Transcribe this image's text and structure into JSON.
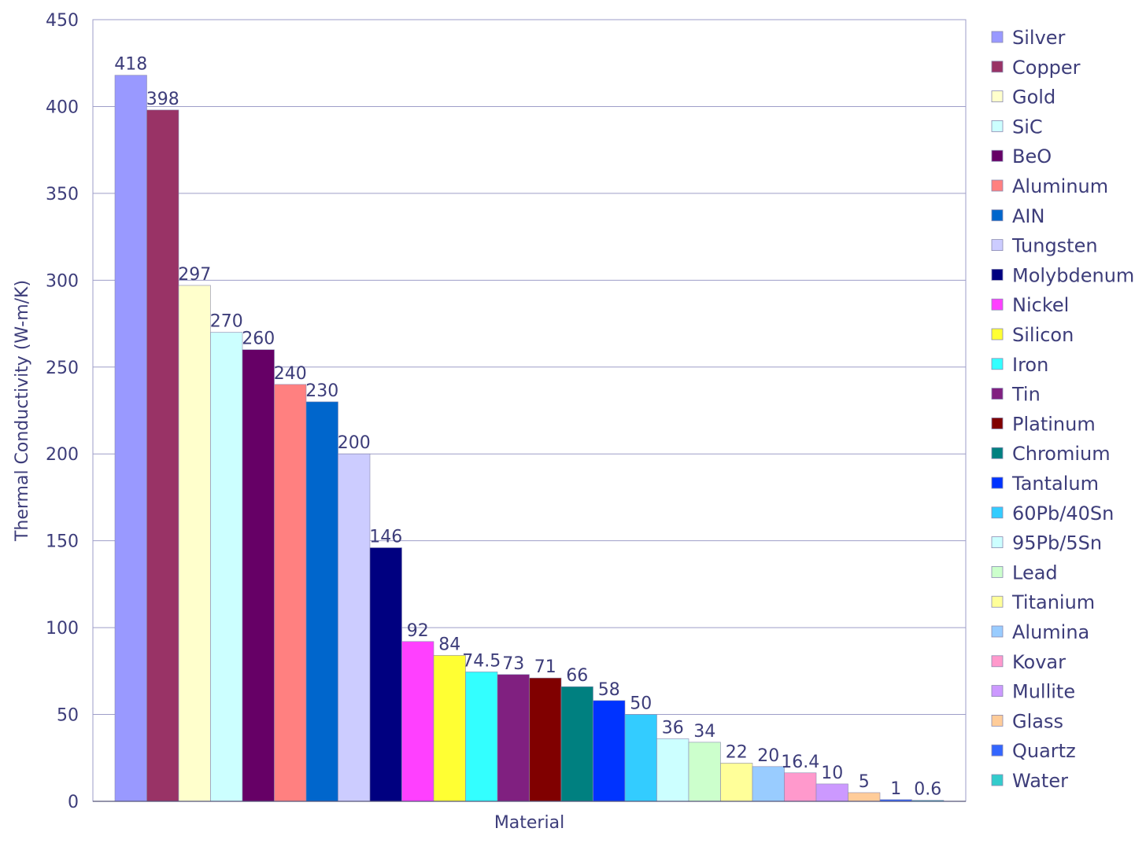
{
  "chart_data": {
    "type": "bar",
    "title": "",
    "xlabel": "Material",
    "ylabel": "Thermal Conductivity (W-m/K)",
    "ylim": [
      0,
      450
    ],
    "yticks": [
      0,
      50,
      100,
      150,
      200,
      250,
      300,
      350,
      400,
      450
    ],
    "grid": true,
    "legend_position": "right",
    "series": [
      {
        "name": "Silver",
        "value": 418,
        "label": "418",
        "color": "#9999ff"
      },
      {
        "name": "Copper",
        "value": 398,
        "label": "398",
        "color": "#993366"
      },
      {
        "name": "Gold",
        "value": 297,
        "label": "297",
        "color": "#ffffcc"
      },
      {
        "name": "SiC",
        "value": 270,
        "label": "270",
        "color": "#ccffff"
      },
      {
        "name": "BeO",
        "value": 260,
        "label": "260",
        "color": "#660066"
      },
      {
        "name": "Aluminum",
        "value": 240,
        "label": "240",
        "color": "#ff8080"
      },
      {
        "name": "AIN",
        "value": 230,
        "label": "230",
        "color": "#0066cc"
      },
      {
        "name": "Tungsten",
        "value": 200,
        "label": "200",
        "color": "#ccccff"
      },
      {
        "name": "Molybdenum",
        "value": 146,
        "label": "146",
        "color": "#000080"
      },
      {
        "name": "Nickel",
        "value": 92,
        "label": "92",
        "color": "#ff40ff"
      },
      {
        "name": "Silicon",
        "value": 84,
        "label": "84",
        "color": "#ffff33"
      },
      {
        "name": "Iron",
        "value": 74.5,
        "label": "74.5",
        "color": "#33ffff"
      },
      {
        "name": "Tin",
        "value": 73,
        "label": "73",
        "color": "#802080"
      },
      {
        "name": "Platinum",
        "value": 71,
        "label": "71",
        "color": "#800000"
      },
      {
        "name": "Chromium",
        "value": 66,
        "label": "66",
        "color": "#008080"
      },
      {
        "name": "Tantalum",
        "value": 58,
        "label": "58",
        "color": "#0033ff"
      },
      {
        "name": "60Pb/40Sn",
        "value": 50,
        "label": "50",
        "color": "#33ccff"
      },
      {
        "name": "95Pb/5Sn",
        "value": 36,
        "label": "36",
        "color": "#ccffff"
      },
      {
        "name": "Lead",
        "value": 34,
        "label": "34",
        "color": "#ccffcc"
      },
      {
        "name": "Titanium",
        "value": 22,
        "label": "22",
        "color": "#ffff99"
      },
      {
        "name": "Alumina",
        "value": 20,
        "label": "20",
        "color": "#99ccff"
      },
      {
        "name": "Kovar",
        "value": 16.4,
        "label": "16.4",
        "color": "#ff99cc"
      },
      {
        "name": "Mullite",
        "value": 10,
        "label": "10",
        "color": "#cc99ff"
      },
      {
        "name": "Glass",
        "value": 5,
        "label": "5",
        "color": "#ffcc99"
      },
      {
        "name": "Quartz",
        "value": 1,
        "label": "1",
        "color": "#3366ff"
      },
      {
        "name": "Water",
        "value": 0.6,
        "label": "0.6",
        "color": "#33cccc"
      }
    ]
  },
  "colors": {
    "text": "#3d3d7a",
    "grid": "#9e9ec8",
    "axis": "#555577"
  }
}
